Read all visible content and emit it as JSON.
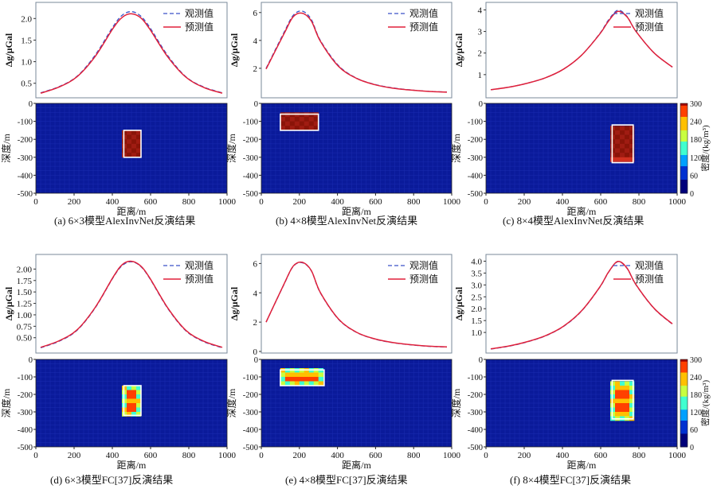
{
  "colors": {
    "observed": "#3a52c8",
    "predicted": "#e0203a",
    "background": "#0a1a9a",
    "grid": "#1a2cb0",
    "anomaly_high": "#9a1a10",
    "box": "#ffffff",
    "colormap": [
      "#00007a",
      "#0030d0",
      "#00a0ff",
      "#40ffd0",
      "#c8ff40",
      "#ffc000",
      "#ff4000",
      "#a00000"
    ]
  },
  "legend": {
    "observed": "观测值",
    "predicted": "预测值"
  },
  "colorbar": {
    "label": "密度/(kg/m³)",
    "ticks": [
      "0",
      "60",
      "120",
      "180",
      "240",
      "300"
    ]
  },
  "chart_data": [
    {
      "id": "a",
      "type": "line",
      "caption": "(a)  6×3模型AlexInvNet反演结果",
      "ylabel": "Δg/μGal",
      "xlabel": "距离/m",
      "depth_label": "深度/m",
      "y_ticks": [
        "0.5",
        "1.0",
        "1.5",
        "2.0"
      ],
      "ylim": [
        0.2,
        2.3
      ],
      "x_ticks": [
        "0",
        "200",
        "400",
        "600",
        "800",
        "1000"
      ],
      "depth_ticks": [
        "0",
        "-100",
        "-200",
        "-300",
        "-400",
        "-500"
      ],
      "series": [
        {
          "name": "观测值",
          "x": [
            0,
            100,
            200,
            300,
            400,
            450,
            500,
            550,
            600,
            700,
            800,
            900,
            1000
          ],
          "values": [
            0.28,
            0.42,
            0.66,
            1.15,
            1.82,
            2.08,
            2.16,
            2.06,
            1.8,
            1.14,
            0.65,
            0.41,
            0.28
          ]
        },
        {
          "name": "预测值",
          "x": [
            0,
            100,
            200,
            300,
            400,
            450,
            500,
            550,
            600,
            700,
            800,
            900,
            1000
          ],
          "values": [
            0.27,
            0.41,
            0.65,
            1.12,
            1.78,
            2.03,
            2.11,
            2.02,
            1.76,
            1.11,
            0.64,
            0.4,
            0.27
          ]
        }
      ],
      "inversion": {
        "type": "heatmap",
        "anomaly_x": [
          460,
          550
        ],
        "anomaly_depth": [
          -150,
          -300
        ],
        "max_density": 300
      }
    },
    {
      "id": "b",
      "type": "line",
      "caption": "(b)  4×8模型AlexInvNet反演结果",
      "ylabel": "Δg/μGal",
      "xlabel": "距离/m",
      "depth_label": "深度/m",
      "y_ticks": [
        "2",
        "4",
        "6"
      ],
      "ylim": [
        0,
        6.5
      ],
      "x_ticks": [
        "0",
        "200",
        "400",
        "600",
        "800",
        "1000"
      ],
      "depth_ticks": [
        "0",
        "-100",
        "-200",
        "-300",
        "-400",
        "-500"
      ],
      "series": [
        {
          "name": "观测值",
          "x": [
            0,
            100,
            150,
            200,
            250,
            300,
            400,
            500,
            600,
            700,
            800,
            900,
            1000
          ],
          "values": [
            2.0,
            4.6,
            5.8,
            6.1,
            5.5,
            4.0,
            2.2,
            1.3,
            0.85,
            0.6,
            0.45,
            0.35,
            0.3
          ]
        },
        {
          "name": "预测值",
          "x": [
            0,
            100,
            150,
            200,
            250,
            300,
            400,
            500,
            600,
            700,
            800,
            900,
            1000
          ],
          "values": [
            1.95,
            4.5,
            5.7,
            5.95,
            5.4,
            3.95,
            2.15,
            1.28,
            0.83,
            0.58,
            0.44,
            0.34,
            0.29
          ]
        }
      ],
      "inversion": {
        "type": "heatmap",
        "anomaly_x": [
          100,
          300
        ],
        "anomaly_depth": [
          -60,
          -150
        ],
        "max_density": 300
      }
    },
    {
      "id": "c",
      "type": "line",
      "caption": "(c)  8×4模型AlexInvNet反演结果",
      "ylabel": "Δg/μGal",
      "xlabel": "距离/m",
      "depth_label": "深度/m",
      "y_ticks": [
        "1",
        "2",
        "3",
        "4"
      ],
      "ylim": [
        0,
        4.2
      ],
      "x_ticks": [
        "0",
        "200",
        "400",
        "600",
        "800",
        "1000"
      ],
      "depth_ticks": [
        "0",
        "-100",
        "-200",
        "-300",
        "-400",
        "-500"
      ],
      "series": [
        {
          "name": "观测值",
          "x": [
            0,
            100,
            200,
            300,
            400,
            500,
            600,
            650,
            700,
            750,
            800,
            900,
            1000
          ],
          "values": [
            0.3,
            0.42,
            0.6,
            0.85,
            1.25,
            1.9,
            2.9,
            3.55,
            3.98,
            3.7,
            3.0,
            2.0,
            1.35
          ]
        },
        {
          "name": "预测值",
          "x": [
            0,
            100,
            200,
            300,
            400,
            500,
            600,
            650,
            700,
            750,
            800,
            900,
            1000
          ],
          "values": [
            0.3,
            0.42,
            0.6,
            0.85,
            1.25,
            1.9,
            2.88,
            3.5,
            3.93,
            3.68,
            3.0,
            2.0,
            1.35
          ]
        }
      ],
      "inversion": {
        "type": "heatmap",
        "anomaly_x": [
          660,
          770
        ],
        "anomaly_depth": [
          -120,
          -330
        ],
        "max_density": 300
      }
    },
    {
      "id": "d",
      "type": "line",
      "caption": "(d)  6×3模型FC[37]反演结果",
      "ylabel": "Δg/μGal",
      "xlabel": "距离/m",
      "depth_label": "深度/m",
      "y_ticks": [
        "0.50",
        "0.75",
        "1.00",
        "1.25",
        "1.50",
        "1.75",
        "2.00"
      ],
      "ylim": [
        0.2,
        2.25
      ],
      "x_ticks": [
        "0",
        "200",
        "400",
        "600",
        "800",
        "1000"
      ],
      "depth_ticks": [
        "0",
        "-100",
        "-200",
        "-300",
        "-400",
        "-500"
      ],
      "series": [
        {
          "name": "观测值",
          "x": [
            0,
            100,
            200,
            300,
            400,
            450,
            500,
            550,
            600,
            700,
            800,
            900,
            1000
          ],
          "values": [
            0.28,
            0.42,
            0.66,
            1.15,
            1.82,
            2.08,
            2.16,
            2.06,
            1.8,
            1.14,
            0.65,
            0.41,
            0.28
          ]
        },
        {
          "name": "预测值",
          "x": [
            0,
            100,
            200,
            300,
            400,
            450,
            500,
            550,
            600,
            700,
            800,
            900,
            1000
          ],
          "values": [
            0.29,
            0.43,
            0.67,
            1.16,
            1.83,
            2.1,
            2.17,
            2.07,
            1.81,
            1.15,
            0.66,
            0.42,
            0.29
          ]
        }
      ],
      "inversion": {
        "type": "heatmap",
        "anomaly_x": [
          460,
          550
        ],
        "anomaly_depth": [
          -150,
          -320
        ],
        "max_density": 300
      }
    },
    {
      "id": "e",
      "type": "line",
      "caption": "(e)  4×8模型FC[37]反演结果",
      "ylabel": "Δg/μGal",
      "xlabel": "距离/m",
      "depth_label": "深度/m",
      "y_ticks": [
        "0",
        "2",
        "4",
        "6"
      ],
      "ylim": [
        0,
        6.4
      ],
      "x_ticks": [
        "0",
        "200",
        "400",
        "600",
        "800",
        "1000"
      ],
      "depth_ticks": [
        "0",
        "-100",
        "-200",
        "-300",
        "-400",
        "-500"
      ],
      "series": [
        {
          "name": "观测值",
          "x": [
            0,
            100,
            150,
            200,
            250,
            300,
            400,
            500,
            600,
            700,
            800,
            900,
            1000
          ],
          "values": [
            2.0,
            4.6,
            5.8,
            6.05,
            5.5,
            4.0,
            2.2,
            1.3,
            0.85,
            0.6,
            0.45,
            0.35,
            0.3
          ]
        },
        {
          "name": "预测值",
          "x": [
            0,
            100,
            150,
            200,
            250,
            300,
            400,
            500,
            600,
            700,
            800,
            900,
            1000
          ],
          "values": [
            2.0,
            4.62,
            5.82,
            6.08,
            5.52,
            4.02,
            2.22,
            1.31,
            0.86,
            0.61,
            0.46,
            0.36,
            0.31
          ]
        }
      ],
      "inversion": {
        "type": "heatmap",
        "anomaly_x": [
          100,
          330
        ],
        "anomaly_depth": [
          -60,
          -150
        ],
        "max_density": 300
      }
    },
    {
      "id": "f",
      "type": "line",
      "caption": "(f)  8×4模型FC[37]反演结果",
      "ylabel": "Δg/μGal",
      "xlabel": "距离/m",
      "depth_label": "深度/m",
      "y_ticks": [
        "1.0",
        "1.5",
        "2.0",
        "2.5",
        "3.0",
        "3.5",
        "4.0"
      ],
      "ylim": [
        0.2,
        4.15
      ],
      "x_ticks": [
        "0",
        "200",
        "400",
        "600",
        "800",
        "1000"
      ],
      "depth_ticks": [
        "0",
        "-100",
        "-200",
        "-300",
        "-400",
        "-500"
      ],
      "series": [
        {
          "name": "观测值",
          "x": [
            0,
            100,
            200,
            300,
            400,
            500,
            600,
            650,
            700,
            750,
            800,
            900,
            1000
          ],
          "values": [
            0.3,
            0.42,
            0.6,
            0.85,
            1.25,
            1.9,
            2.9,
            3.55,
            3.98,
            3.7,
            3.0,
            2.0,
            1.35
          ]
        },
        {
          "name": "预测值",
          "x": [
            0,
            100,
            200,
            300,
            400,
            500,
            600,
            650,
            700,
            750,
            800,
            900,
            1000
          ],
          "values": [
            0.31,
            0.43,
            0.61,
            0.86,
            1.26,
            1.91,
            2.91,
            3.56,
            3.99,
            3.71,
            3.01,
            2.01,
            1.36
          ]
        }
      ],
      "inversion": {
        "type": "heatmap",
        "anomaly_x": [
          660,
          770
        ],
        "anomaly_depth": [
          -120,
          -340
        ],
        "max_density": 300
      }
    }
  ]
}
